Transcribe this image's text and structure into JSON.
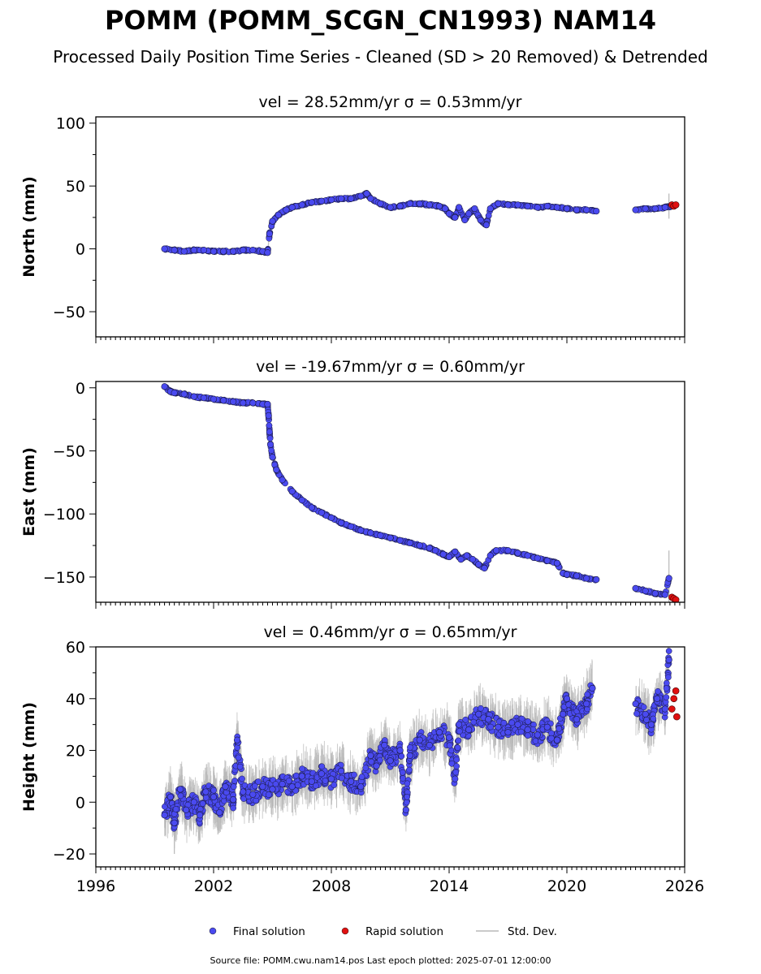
{
  "header": {
    "title": "POMM (POMM_SCGN_CN1993) NAM14",
    "subtitle": "Processed Daily Position Time Series - Cleaned (SD > 20 Removed) & Detrended"
  },
  "footer": {
    "text": "Source file: POMM.cwu.nam14.pos  Last epoch plotted: 2025-07-01 12:00:00"
  },
  "colors": {
    "final": "#4a4af0",
    "rapid": "#e01010",
    "stddev": "#b8b8b8"
  },
  "chart_data": [
    {
      "type": "scatter",
      "title": "vel = 28.52mm/yr   σ = 0.53mm/yr",
      "ylabel": "North (mm)",
      "xlim": [
        1996,
        2026
      ],
      "ylim": [
        -70,
        105
      ],
      "x_ticks": [
        1996,
        2002,
        2008,
        2014,
        2020,
        2026
      ],
      "y_ticks": [
        -50,
        0,
        50,
        100
      ],
      "show_x_tick_labels": false,
      "series": [
        {
          "name": "Final solution",
          "points": [
            [
              1999.5,
              0
            ],
            [
              2000,
              -1
            ],
            [
              2000.5,
              -2
            ],
            [
              2001,
              -1
            ],
            [
              2001.5,
              -1
            ],
            [
              2002,
              -2
            ],
            [
              2002.5,
              -2
            ],
            [
              2003,
              -2
            ],
            [
              2003.5,
              -1
            ],
            [
              2004,
              -1
            ],
            [
              2004.5,
              -2
            ],
            [
              2004.75,
              -3
            ],
            [
              2004.85,
              12
            ],
            [
              2005,
              22
            ],
            [
              2005.3,
              27
            ],
            [
              2005.7,
              31
            ],
            [
              2006,
              33
            ],
            [
              2006.5,
              35
            ],
            [
              2007,
              37
            ],
            [
              2007.5,
              38
            ],
            [
              2008,
              39
            ],
            [
              2008.5,
              40
            ],
            [
              2009,
              40
            ],
            [
              2009.5,
              42
            ],
            [
              2009.8,
              44
            ],
            [
              2010,
              40
            ],
            [
              2010.5,
              36
            ],
            [
              2011,
              33
            ],
            [
              2011.5,
              34
            ],
            [
              2012,
              36
            ],
            [
              2012.5,
              36
            ],
            [
              2013,
              35
            ],
            [
              2013.5,
              34
            ],
            [
              2013.8,
              32
            ],
            [
              2014,
              28
            ],
            [
              2014.3,
              25
            ],
            [
              2014.5,
              33
            ],
            [
              2014.8,
              23
            ],
            [
              2015,
              28
            ],
            [
              2015.3,
              32
            ],
            [
              2015.6,
              23
            ],
            [
              2015.9,
              19
            ],
            [
              2016.1,
              32
            ],
            [
              2016.5,
              36
            ],
            [
              2017,
              35
            ],
            [
              2017.5,
              35
            ],
            [
              2018,
              34
            ],
            [
              2018.5,
              33
            ],
            [
              2019,
              34
            ],
            [
              2019.5,
              33
            ],
            [
              2020,
              32
            ],
            [
              2020.5,
              31
            ],
            [
              2021,
              31
            ],
            [
              2021.5,
              30
            ],
            [
              2023.5,
              31
            ],
            [
              2024,
              32
            ],
            [
              2024.5,
              32
            ],
            [
              2025,
              33
            ],
            [
              2025.3,
              34
            ]
          ]
        },
        {
          "name": "Rapid solution",
          "points": [
            [
              2025.35,
              35
            ],
            [
              2025.45,
              34
            ],
            [
              2025.55,
              35
            ]
          ]
        }
      ],
      "errors": [
        [
          2025.2,
          10
        ]
      ]
    },
    {
      "type": "scatter",
      "title": "vel = -19.67mm/yr   σ = 0.60mm/yr",
      "ylabel": "East (mm)",
      "xlim": [
        1996,
        2026
      ],
      "ylim": [
        -170,
        5
      ],
      "x_ticks": [
        1996,
        2002,
        2008,
        2014,
        2020,
        2026
      ],
      "y_ticks": [
        -150,
        -100,
        -50,
        0
      ],
      "show_x_tick_labels": false,
      "series": [
        {
          "name": "Final solution",
          "points": [
            [
              1999.5,
              1
            ],
            [
              1999.8,
              -3
            ],
            [
              2000,
              -4
            ],
            [
              2000.5,
              -5
            ],
            [
              2001,
              -7
            ],
            [
              2001.5,
              -8
            ],
            [
              2002,
              -9
            ],
            [
              2002.5,
              -10
            ],
            [
              2003,
              -11
            ],
            [
              2003.5,
              -12
            ],
            [
              2004,
              -12
            ],
            [
              2004.5,
              -13
            ],
            [
              2004.75,
              -13
            ],
            [
              2004.8,
              -22
            ],
            [
              2004.85,
              -35
            ],
            [
              2004.9,
              -45
            ],
            [
              2005,
              -55
            ],
            [
              2005.2,
              -65
            ],
            [
              2005.5,
              -73
            ],
            [
              2006,
              -82
            ],
            [
              2006.5,
              -89
            ],
            [
              2007,
              -95
            ],
            [
              2007.5,
              -99
            ],
            [
              2008,
              -103
            ],
            [
              2008.5,
              -107
            ],
            [
              2009,
              -110
            ],
            [
              2009.5,
              -113
            ],
            [
              2010,
              -115
            ],
            [
              2010.5,
              -117
            ],
            [
              2011,
              -119
            ],
            [
              2011.5,
              -121
            ],
            [
              2012,
              -123
            ],
            [
              2012.5,
              -125
            ],
            [
              2013,
              -127
            ],
            [
              2013.3,
              -129
            ],
            [
              2013.7,
              -132
            ],
            [
              2014,
              -134
            ],
            [
              2014.3,
              -130
            ],
            [
              2014.6,
              -136
            ],
            [
              2014.9,
              -133
            ],
            [
              2015.2,
              -136
            ],
            [
              2015.5,
              -140
            ],
            [
              2015.8,
              -143
            ],
            [
              2016.1,
              -133
            ],
            [
              2016.4,
              -129
            ],
            [
              2017,
              -129
            ],
            [
              2017.5,
              -131
            ],
            [
              2018,
              -133
            ],
            [
              2018.5,
              -135
            ],
            [
              2019,
              -137
            ],
            [
              2019.5,
              -139
            ],
            [
              2019.8,
              -147
            ],
            [
              2020,
              -148
            ],
            [
              2020.5,
              -149
            ],
            [
              2021,
              -151
            ],
            [
              2021.5,
              -152
            ],
            [
              2023.5,
              -159
            ],
            [
              2024,
              -161
            ],
            [
              2024.5,
              -163
            ],
            [
              2025,
              -164
            ],
            [
              2025.2,
              -151
            ]
          ]
        },
        {
          "name": "Rapid solution",
          "points": [
            [
              2025.35,
              -166
            ],
            [
              2025.45,
              -167
            ],
            [
              2025.55,
              -168
            ]
          ]
        }
      ],
      "errors": [
        [
          2025.2,
          22
        ]
      ]
    },
    {
      "type": "scatter",
      "title": "vel = 0.46mm/yr   σ = 0.65mm/yr",
      "ylabel": "Height (mm)",
      "xlim": [
        1996,
        2026
      ],
      "ylim": [
        -25,
        60
      ],
      "x_ticks": [
        1996,
        2002,
        2008,
        2014,
        2020,
        2026
      ],
      "y_ticks": [
        -20,
        0,
        20,
        40,
        60
      ],
      "show_x_tick_labels": true,
      "x_tick_labels": [
        "1996",
        "2002",
        "2008",
        "2014",
        "2020",
        "2026"
      ],
      "series": [
        {
          "name": "Final solution",
          "points": [
            [
              1999.5,
              -5
            ],
            [
              1999.8,
              2
            ],
            [
              2000,
              -8
            ],
            [
              2000.3,
              5
            ],
            [
              2000.6,
              -3
            ],
            [
              2001,
              0
            ],
            [
              2001.3,
              -5
            ],
            [
              2001.6,
              4
            ],
            [
              2002,
              2
            ],
            [
              2002.3,
              -4
            ],
            [
              2002.6,
              6
            ],
            [
              2003,
              1
            ],
            [
              2003.2,
              24
            ],
            [
              2003.5,
              4
            ],
            [
              2004,
              3
            ],
            [
              2004.5,
              6
            ],
            [
              2005,
              5
            ],
            [
              2005.5,
              7
            ],
            [
              2006,
              6
            ],
            [
              2006.5,
              10
            ],
            [
              2007,
              8
            ],
            [
              2007.5,
              11
            ],
            [
              2008,
              9
            ],
            [
              2008.5,
              12
            ],
            [
              2009,
              8
            ],
            [
              2009.5,
              6
            ],
            [
              2010,
              18
            ],
            [
              2010.3,
              14
            ],
            [
              2010.7,
              22
            ],
            [
              2011,
              16
            ],
            [
              2011.5,
              20
            ],
            [
              2011.8,
              -3
            ],
            [
              2012,
              18
            ],
            [
              2012.5,
              24
            ],
            [
              2013,
              22
            ],
            [
              2013.5,
              27
            ],
            [
              2014,
              25
            ],
            [
              2014.3,
              9
            ],
            [
              2014.5,
              30
            ],
            [
              2015,
              28
            ],
            [
              2015.5,
              34
            ],
            [
              2016,
              32
            ],
            [
              2016.5,
              29
            ],
            [
              2017,
              27
            ],
            [
              2017.5,
              30
            ],
            [
              2018,
              28
            ],
            [
              2018.5,
              26
            ],
            [
              2019,
              29
            ],
            [
              2019.5,
              24
            ],
            [
              2019.8,
              34
            ],
            [
              2020,
              40
            ],
            [
              2020.5,
              32
            ],
            [
              2021,
              38
            ],
            [
              2021.3,
              44
            ],
            [
              2023.5,
              38
            ],
            [
              2024,
              34
            ],
            [
              2024.3,
              30
            ],
            [
              2024.6,
              40
            ],
            [
              2025,
              36
            ],
            [
              2025.2,
              55
            ]
          ]
        },
        {
          "name": "Rapid solution",
          "points": [
            [
              2025.35,
              36
            ],
            [
              2025.45,
              40
            ],
            [
              2025.55,
              43
            ],
            [
              2025.6,
              33
            ]
          ]
        }
      ],
      "errors": [
        [
          2000,
          12
        ],
        [
          2002,
          10
        ],
        [
          2004,
          10
        ],
        [
          2006,
          10
        ],
        [
          2008,
          10
        ],
        [
          2010,
          8
        ],
        [
          2012,
          8
        ],
        [
          2014,
          8
        ],
        [
          2016,
          8
        ],
        [
          2018,
          8
        ],
        [
          2020,
          8
        ],
        [
          2021,
          8
        ],
        [
          2024,
          10
        ],
        [
          2025,
          10
        ]
      ]
    }
  ],
  "legend": {
    "placement": "bottom-center",
    "items": [
      {
        "label": "Final solution",
        "kind": "dot",
        "color": "#4a4af0"
      },
      {
        "label": "Rapid solution",
        "kind": "dot",
        "color": "#e01010"
      },
      {
        "label": "Std. Dev.",
        "kind": "line",
        "color": "#b8b8b8"
      }
    ]
  }
}
